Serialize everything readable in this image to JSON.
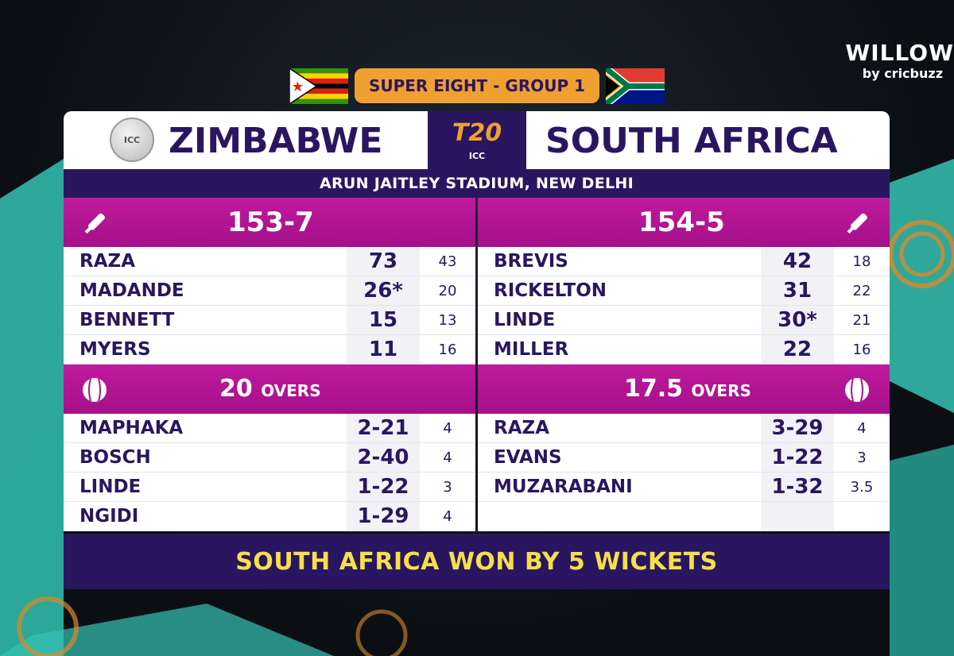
{
  "broadcaster": {
    "name": "WILLOW",
    "tagline": "by cricbuzz"
  },
  "stage": "SUPER EIGHT - GROUP 1",
  "tournament": {
    "logo_text": "T20",
    "org": "ICC",
    "coin_text": "ICC"
  },
  "teams": {
    "team1": "ZIMBABWE",
    "team2": "SOUTH AFRICA"
  },
  "venue": "ARUN JAITLEY STADIUM, NEW DELHI",
  "innings1": {
    "score": "153-7",
    "batters": [
      {
        "name": "RAZA",
        "runs": "73",
        "balls": "43"
      },
      {
        "name": "MADANDE",
        "runs": "26*",
        "balls": "20"
      },
      {
        "name": "BENNETT",
        "runs": "15",
        "balls": "13"
      },
      {
        "name": "MYERS",
        "runs": "11",
        "balls": "16"
      }
    ],
    "overs": "20",
    "overs_label": "OVERS",
    "bowlers": [
      {
        "name": "MAPHAKA",
        "figures": "2-21",
        "overs": "4"
      },
      {
        "name": "BOSCH",
        "figures": "2-40",
        "overs": "4"
      },
      {
        "name": "LINDE",
        "figures": "1-22",
        "overs": "3"
      },
      {
        "name": "NGIDI",
        "figures": "1-29",
        "overs": "4"
      }
    ]
  },
  "innings2": {
    "score": "154-5",
    "batters": [
      {
        "name": "BREVIS",
        "runs": "42",
        "balls": "18"
      },
      {
        "name": "RICKELTON",
        "runs": "31",
        "balls": "22"
      },
      {
        "name": "LINDE",
        "runs": "30*",
        "balls": "21"
      },
      {
        "name": "MILLER",
        "runs": "22",
        "balls": "16"
      }
    ],
    "overs": "17.5",
    "overs_label": "OVERS",
    "bowlers": [
      {
        "name": "RAZA",
        "figures": "3-29",
        "overs": "4"
      },
      {
        "name": "EVANS",
        "figures": "1-22",
        "overs": "3"
      },
      {
        "name": "MUZARABANI",
        "figures": "1-32",
        "overs": "3.5"
      },
      {
        "name": "",
        "figures": "",
        "overs": ""
      }
    ]
  },
  "result": "SOUTH AFRICA WON BY 5 WICKETS",
  "colors": {
    "navy": "#2a1660",
    "magenta": "#b0148f",
    "orange": "#f0a030",
    "teal": "#36c3b4",
    "result_text": "#f5e04a"
  },
  "icons": {
    "bat": "cricket-bat-icon",
    "ball": "cricket-ball-icon"
  }
}
